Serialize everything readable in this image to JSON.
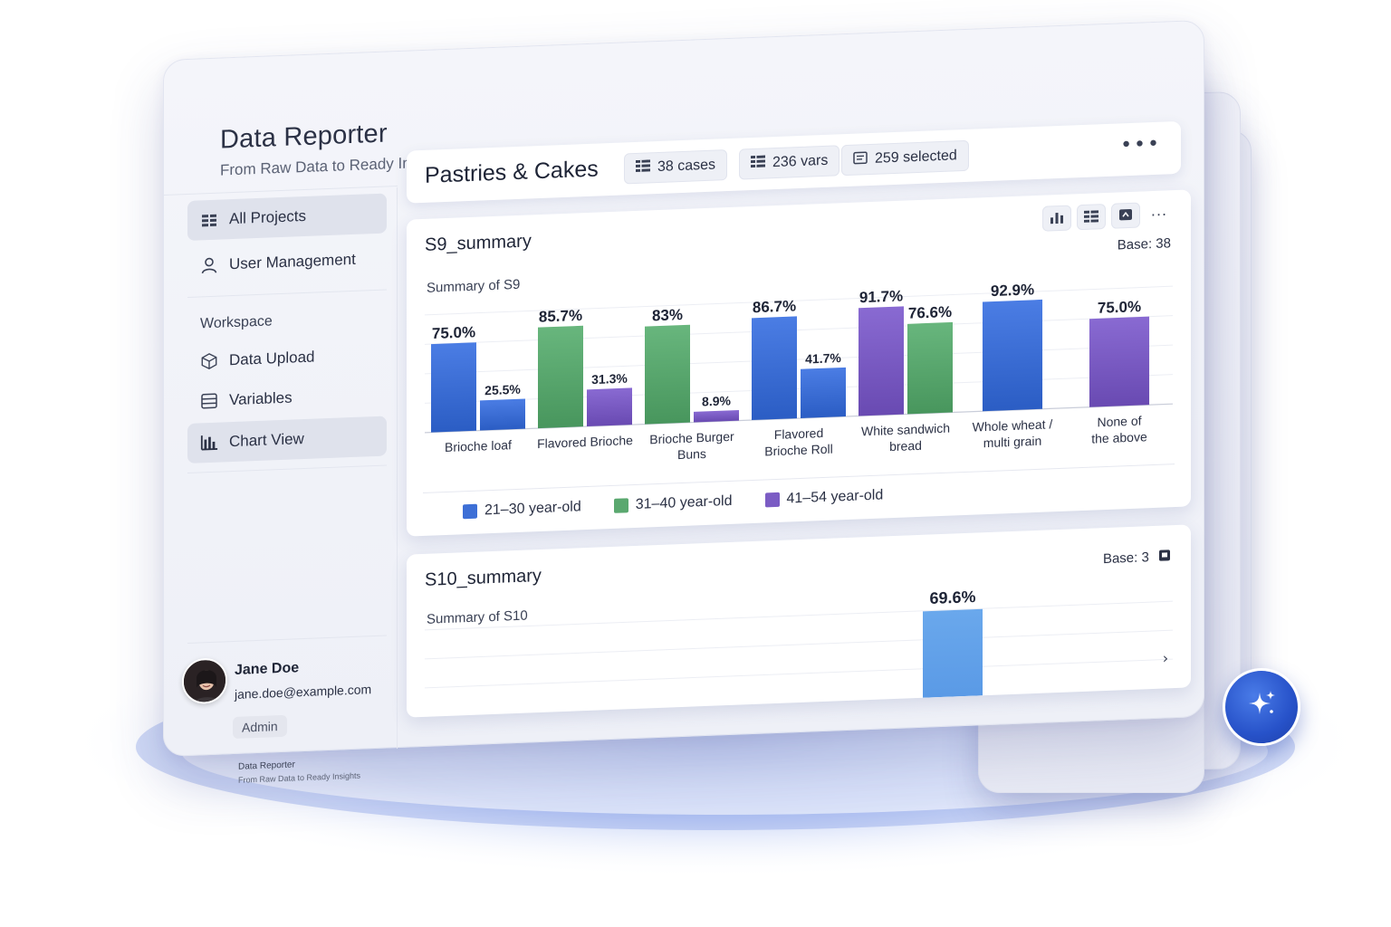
{
  "app": {
    "title": "Data Reporter",
    "subtitle": "From Raw Data to Ready Insights"
  },
  "sidebar": {
    "items": [
      {
        "label": "All Projects",
        "icon": "grid-icon",
        "active": true
      },
      {
        "label": "User Management",
        "icon": "user-icon",
        "active": false
      }
    ],
    "workspace_label": "Workspace",
    "workspace_items": [
      {
        "label": "Data Upload",
        "icon": "cube-icon",
        "active": false
      },
      {
        "label": "Variables",
        "icon": "list-icon",
        "active": false
      },
      {
        "label": "Chart View",
        "icon": "bar-chart-icon",
        "active": true
      }
    ]
  },
  "user": {
    "name": "Jane Doe",
    "email": "jane.doe@example.com",
    "role": "Admin"
  },
  "footer": {
    "title": "Data Reporter",
    "subtitle": "From Raw Data to Ready Insights"
  },
  "project": {
    "title": "Pastries & Cakes",
    "cases": "38 cases",
    "vars": "236 vars",
    "selected": "259 selected",
    "more": "•••"
  },
  "colors": {
    "blue": "#3d6fd6",
    "green": "#5aa86f",
    "purple": "#7b5cc4",
    "light_blue": "#6aa8ec",
    "accent": "#2752c9"
  },
  "s9": {
    "title": "S9_summary",
    "subtitle": "Summary of S9",
    "base": "Base: 38",
    "toolbar_more": "···"
  },
  "s10": {
    "title": "S10_summary",
    "subtitle": "Summary of S10",
    "base": "Base: 3",
    "chevron": "›"
  },
  "chart_data": [
    {
      "type": "bar",
      "title": "S9_summary",
      "subtitle": "Summary of S9",
      "categories": [
        "Brioche loaf",
        "Flavored Brioche",
        "Brioche Burger Buns",
        "Flavored Brioche Roll",
        "White sandwich bread",
        "Whole wheat / multi grain",
        "None of the above"
      ],
      "category_lines": [
        [
          "Brioche loaf"
        ],
        [
          "Flavored Brioche"
        ],
        [
          "Brioche Burger",
          "Buns"
        ],
        [
          "Flavored",
          "Brioche Roll"
        ],
        [
          "White sandwich",
          "bread"
        ],
        [
          "Whole wheat /",
          "multi grain"
        ],
        [
          "None of",
          "the above"
        ]
      ],
      "bars": [
        {
          "category": 0,
          "series": "21–30 year-old",
          "value": 75.0,
          "label": "75.0%"
        },
        {
          "category": 0,
          "series": "21–30 year-old",
          "value": 25.5,
          "label": "25.5%"
        },
        {
          "category": 1,
          "series": "31–40 year-old",
          "value": 85.7,
          "label": "85.7%"
        },
        {
          "category": 1,
          "series": "41–54 year-old",
          "value": 31.3,
          "label": "31.3%"
        },
        {
          "category": 2,
          "series": "31–40 year-old",
          "value": 83,
          "label": "83%"
        },
        {
          "category": 2,
          "series": "41–54 year-old",
          "value": 8.9,
          "label": "8.9%"
        },
        {
          "category": 3,
          "series": "21–30 year-old",
          "value": 86.7,
          "label": "86.7%"
        },
        {
          "category": 3,
          "series": "21–30 year-old",
          "value": 41.7,
          "label": "41.7%"
        },
        {
          "category": 4,
          "series": "41–54 year-old",
          "value": 91.7,
          "label": "91.7%"
        },
        {
          "category": 4,
          "series": "31–40 year-old",
          "value": 76.6,
          "label": "76.6%"
        },
        {
          "category": 5,
          "series": "21–30 year-old",
          "value": 92.9,
          "label": "92.9%"
        },
        {
          "category": 6,
          "series": "41–54 year-old",
          "value": 75.0,
          "label": "75.0%"
        }
      ],
      "legend": [
        {
          "name": "21–30 year-old",
          "color": "#3d6fd6"
        },
        {
          "name": "31–40 year-old",
          "color": "#5aa86f"
        },
        {
          "name": "41–54 year-old",
          "color": "#7b5cc4"
        }
      ],
      "legend_position": "bottom",
      "ylim": [
        0,
        100
      ],
      "grid": true
    },
    {
      "type": "bar",
      "title": "S10_summary",
      "subtitle": "Summary of S10",
      "bars": [
        {
          "value": 69.6,
          "label": "69.6%"
        }
      ],
      "grid": true
    }
  ]
}
